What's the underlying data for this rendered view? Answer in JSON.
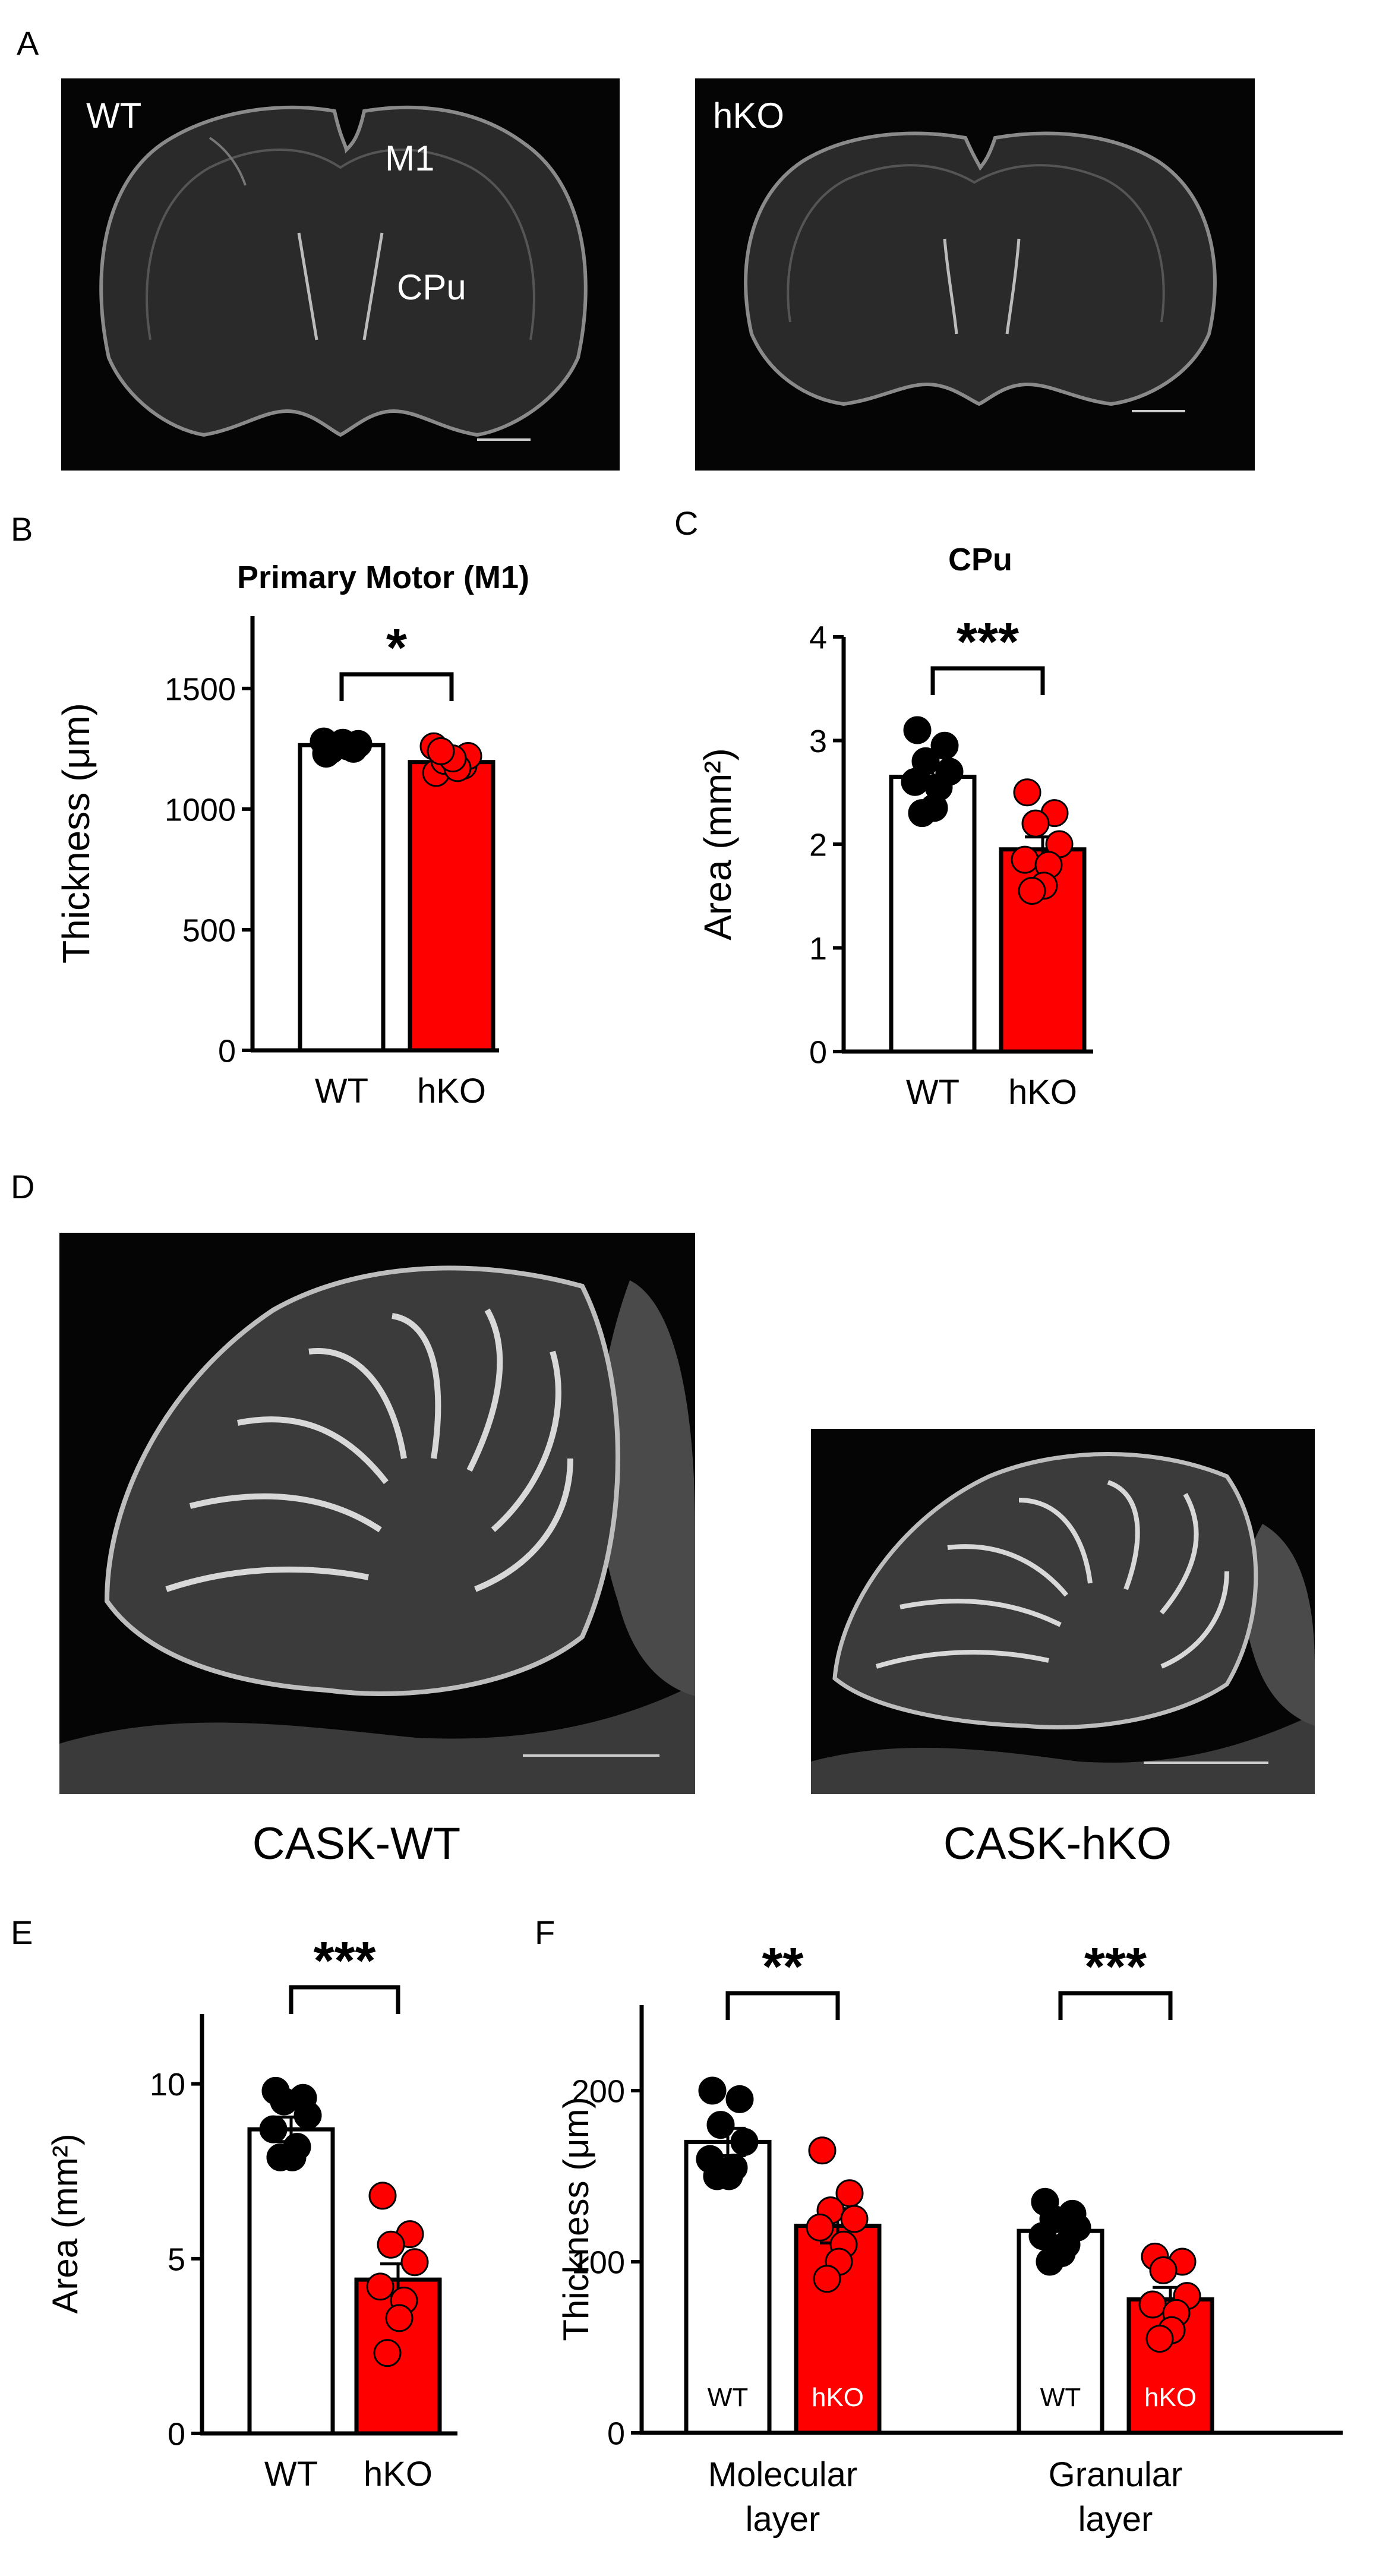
{
  "panels": {
    "A": "A",
    "B": "B",
    "C": "C",
    "D": "D",
    "E": "E",
    "F": "F"
  },
  "panel_a": {
    "wt_label": "WT",
    "hko_label": "hKO",
    "region_m1": "M1",
    "region_cpu": "CPu"
  },
  "panel_d": {
    "wt_caption": "CASK-WT",
    "hko_caption": "CASK-hKO"
  },
  "colors": {
    "wt_fill": "#ffffff",
    "hko_fill": "#ff0000",
    "wt_dot": "#000000",
    "hko_dot": "#ff0000"
  },
  "chart_data": [
    {
      "id": "B",
      "type": "bar",
      "title": "Primary Motor (M1)",
      "ylabel": "Thickness (μm)",
      "ylim": [
        0,
        1800
      ],
      "yticks": [
        0,
        500,
        1000,
        1500
      ],
      "categories": [
        "WT",
        "hKO"
      ],
      "values": [
        1265,
        1195
      ],
      "sem": [
        20,
        25
      ],
      "points": [
        [
          1230,
          1250,
          1260,
          1270,
          1280,
          1260,
          1275,
          1245
        ],
        [
          1150,
          1180,
          1200,
          1220,
          1260,
          1170,
          1210,
          1240
        ]
      ],
      "significance": "*"
    },
    {
      "id": "C",
      "type": "bar",
      "title": "CPu",
      "ylabel": "Area (mm²)",
      "ylim": [
        0,
        4
      ],
      "yticks": [
        0,
        1,
        2,
        3,
        4
      ],
      "categories": [
        "WT",
        "hKO"
      ],
      "values": [
        2.65,
        1.95
      ],
      "sem": [
        0.1,
        0.12
      ],
      "points": [
        [
          3.1,
          2.95,
          2.8,
          2.7,
          2.6,
          2.55,
          2.35,
          2.3
        ],
        [
          2.5,
          2.3,
          2.2,
          2.0,
          1.85,
          1.8,
          1.6,
          1.55
        ]
      ],
      "significance": "***"
    },
    {
      "id": "E",
      "type": "bar",
      "ylabel": "Area (mm²)",
      "ylim": [
        0,
        12
      ],
      "yticks": [
        0,
        5,
        10
      ],
      "categories": [
        "WT",
        "hKO"
      ],
      "values": [
        8.7,
        4.4
      ],
      "sem": [
        0.35,
        0.45
      ],
      "points": [
        [
          9.8,
          9.6,
          9.5,
          9.1,
          8.7,
          8.2,
          7.9,
          7.9
        ],
        [
          6.8,
          5.7,
          5.4,
          4.9,
          4.2,
          3.8,
          3.3,
          2.3
        ]
      ],
      "significance": "***"
    },
    {
      "id": "F",
      "type": "bar",
      "ylabel": "Thickness (μm)",
      "ylim": [
        0,
        250
      ],
      "yticks": [
        0,
        100,
        200
      ],
      "groups": [
        "Molecular layer",
        "Granular layer"
      ],
      "group_lines": [
        [
          "Molecular",
          "layer"
        ],
        [
          "Granular",
          "layer"
        ]
      ],
      "bar_labels": [
        "WT",
        "hKO"
      ],
      "series": [
        {
          "name": "WT",
          "values": [
            170,
            118
          ],
          "sem": [
            8,
            5
          ],
          "points": [
            [
              200,
              195,
              180,
              170,
              160,
              155,
              150,
              150
            ],
            [
              135,
              128,
              125,
              120,
              115,
              110,
              105,
              100
            ]
          ]
        },
        {
          "name": "hKO",
          "values": [
            121,
            78
          ],
          "sem": [
            10,
            7
          ],
          "points": [
            [
              165,
              140,
              130,
              125,
              120,
              110,
              100,
              90
            ],
            [
              103,
              100,
              95,
              80,
              75,
              70,
              60,
              55
            ]
          ]
        }
      ],
      "significance": [
        "**",
        "***"
      ]
    }
  ]
}
